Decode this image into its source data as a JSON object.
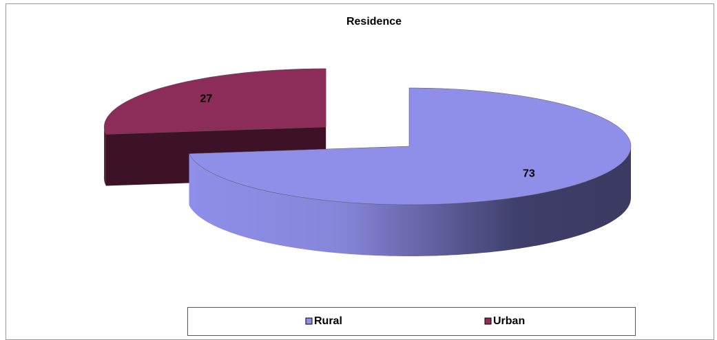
{
  "chart_data": {
    "type": "pie",
    "title": "Residence",
    "categories": [
      "Rural",
      "Urban"
    ],
    "values": [
      73,
      27
    ],
    "colors": [
      "#8f8fea",
      "#8b2d58"
    ],
    "legend": "bottom"
  }
}
